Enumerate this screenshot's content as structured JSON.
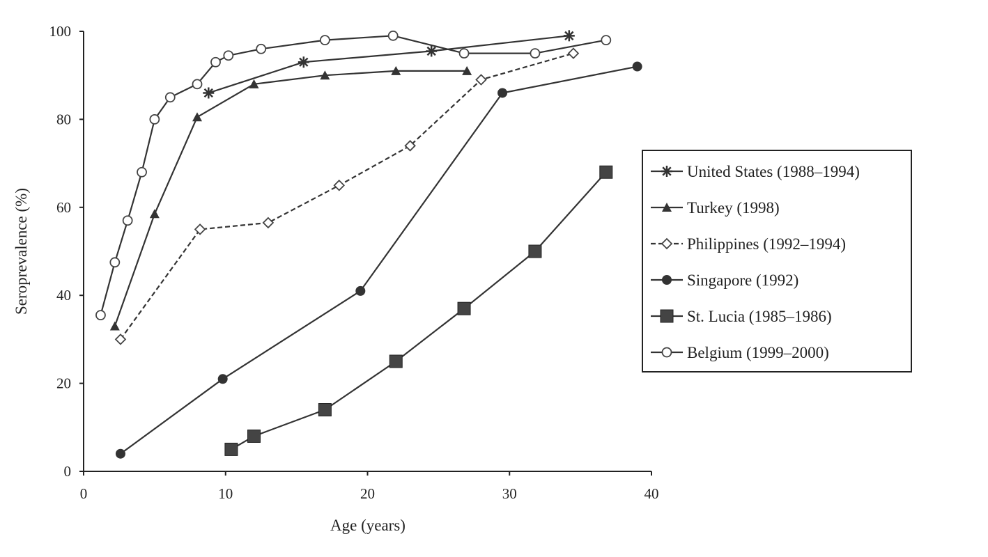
{
  "chart_data": {
    "type": "line",
    "title": "",
    "xlabel": "Age (years)",
    "ylabel": "Seroprevalence (%)",
    "xlim": [
      0,
      40
    ],
    "ylim": [
      0,
      100
    ],
    "x_ticks": [
      "0",
      "10",
      "20",
      "30",
      "40"
    ],
    "y_ticks": [
      "0",
      "20",
      "40",
      "60",
      "80",
      "100"
    ],
    "grid": false,
    "legend_position": "right",
    "series": [
      {
        "name": "United States (1988–1994)",
        "marker": "star",
        "dashed": false,
        "x": [
          8.8,
          15.5,
          24.5,
          34.2
        ],
        "y": [
          86,
          93,
          95.5,
          99
        ]
      },
      {
        "name": "Turkey (1998)",
        "marker": "triangle",
        "dashed": false,
        "x": [
          2.2,
          5.0,
          8.0,
          12.0,
          17.0,
          22.0,
          27.0
        ],
        "y": [
          33,
          58.5,
          80.5,
          88,
          90,
          91,
          91
        ]
      },
      {
        "name": "Philippines (1992–1994)",
        "marker": "open-diamond",
        "dashed": true,
        "x": [
          2.6,
          8.2,
          13.0,
          18.0,
          23.0,
          28.0,
          34.5
        ],
        "y": [
          30,
          55,
          56.5,
          65,
          74,
          89,
          95
        ]
      },
      {
        "name": "Singapore (1992)",
        "marker": "filled-circle",
        "dashed": false,
        "x": [
          2.6,
          9.8,
          19.5,
          29.5,
          39.0
        ],
        "y": [
          4,
          21,
          41,
          86,
          92
        ]
      },
      {
        "name": "St. Lucia (1985–1986)",
        "marker": "filled-square",
        "dashed": false,
        "x": [
          10.4,
          12.0,
          17.0,
          22.0,
          26.8,
          31.8,
          36.8
        ],
        "y": [
          5,
          8,
          14,
          25,
          37,
          50,
          68
        ]
      },
      {
        "name": "Belgium (1999–2000)",
        "marker": "open-circle",
        "dashed": false,
        "x": [
          1.2,
          2.2,
          3.1,
          4.1,
          5.0,
          6.1,
          8.0,
          9.3,
          10.2,
          12.5,
          17.0,
          21.8,
          26.8,
          31.8,
          36.8
        ],
        "y": [
          35.5,
          47.5,
          57,
          68,
          80,
          85,
          88,
          93,
          94.5,
          96,
          98,
          99,
          95,
          95,
          98
        ]
      }
    ]
  }
}
